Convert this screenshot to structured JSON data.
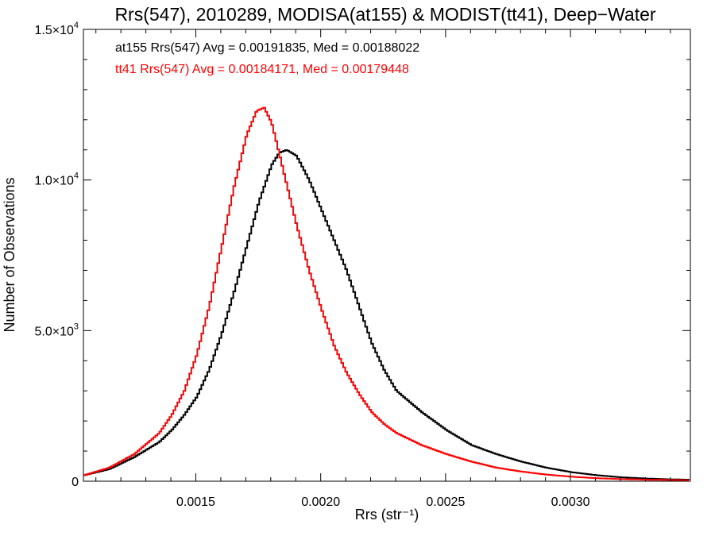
{
  "chart_data": {
    "type": "line",
    "title": "Rrs(547), 2010289, MODISA(at155) & MODIST(tt41), Deep−Water",
    "xlabel": "Rrs (str⁻¹)",
    "ylabel": "Number of Observations",
    "xlim": [
      0.00105,
      0.00348
    ],
    "ylim": [
      0,
      15000
    ],
    "x_ticks": [
      {
        "value": 0.0015,
        "label": "0.0015"
      },
      {
        "value": 0.002,
        "label": "0.0020"
      },
      {
        "value": 0.0025,
        "label": "0.0025"
      },
      {
        "value": 0.003,
        "label": "0.0030"
      }
    ],
    "y_ticks": [
      {
        "value": 0,
        "label": "0",
        "mantissa": "",
        "exp": ""
      },
      {
        "value": 5000,
        "label": "5.0×10³",
        "mantissa": "5.0×10",
        "exp": "3"
      },
      {
        "value": 10000,
        "label": "1.0×10⁴",
        "mantissa": "1.0×10",
        "exp": "4"
      },
      {
        "value": 15000,
        "label": "1.5×10⁴",
        "mantissa": "1.5×10",
        "exp": "4"
      }
    ],
    "grid": false,
    "legend_position": "top-left",
    "series": [
      {
        "name": "at155 Rrs(547) Avg = 0.00191835, Med = 0.00188022",
        "color": "#000000",
        "x": [
          0.00105,
          0.00115,
          0.00125,
          0.00135,
          0.0014,
          0.00145,
          0.0015,
          0.00155,
          0.0016,
          0.00165,
          0.0017,
          0.00175,
          0.0018,
          0.00183,
          0.00186,
          0.0019,
          0.00195,
          0.002,
          0.00205,
          0.0021,
          0.00215,
          0.0022,
          0.00225,
          0.0023,
          0.0024,
          0.0025,
          0.0026,
          0.0027,
          0.0028,
          0.0029,
          0.003,
          0.0031,
          0.0032,
          0.0033,
          0.0034,
          0.00348
        ],
        "y": [
          200,
          400,
          800,
          1300,
          1700,
          2200,
          2800,
          3700,
          4900,
          6300,
          7800,
          9300,
          10500,
          10900,
          11000,
          10800,
          10000,
          9000,
          8000,
          7000,
          5800,
          4600,
          3700,
          3000,
          2300,
          1700,
          1200,
          900,
          650,
          450,
          300,
          200,
          130,
          90,
          60,
          50
        ]
      },
      {
        "name": "tt41 Rrs(547) Avg = 0.00184171, Med = 0.00179448",
        "color": "#ff0000",
        "x": [
          0.00105,
          0.00115,
          0.00125,
          0.00135,
          0.0014,
          0.00145,
          0.0015,
          0.00155,
          0.0016,
          0.00165,
          0.0017,
          0.00174,
          0.00177,
          0.0018,
          0.00185,
          0.0019,
          0.00195,
          0.002,
          0.00205,
          0.0021,
          0.00215,
          0.0022,
          0.00225,
          0.0023,
          0.0024,
          0.0025,
          0.0026,
          0.0027,
          0.0028,
          0.0029,
          0.003,
          0.0031,
          0.0032,
          0.0033,
          0.0034,
          0.00348
        ],
        "y": [
          200,
          450,
          900,
          1600,
          2200,
          3000,
          4200,
          5800,
          7800,
          9800,
          11500,
          12300,
          12400,
          11900,
          10200,
          8500,
          7000,
          5700,
          4500,
          3600,
          2900,
          2300,
          1900,
          1600,
          1200,
          900,
          650,
          450,
          320,
          220,
          150,
          100,
          70,
          50,
          40,
          30
        ]
      }
    ]
  }
}
